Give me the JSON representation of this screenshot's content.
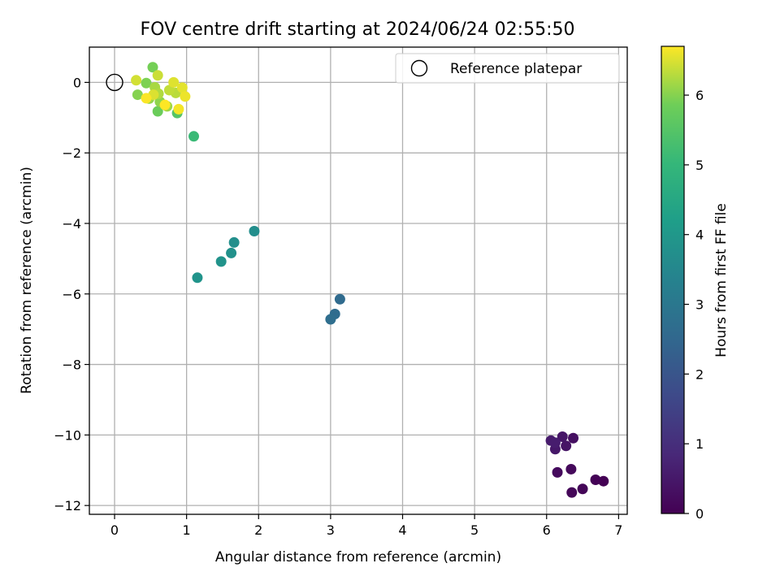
{
  "chart_data": {
    "type": "scatter",
    "title": "FOV centre drift starting at 2024/06/24 02:55:50",
    "xlabel": "Angular distance from reference (arcmin)",
    "ylabel": "Rotation from reference (arcmin)",
    "xlim": [
      -0.35,
      7.12
    ],
    "ylim": [
      -12.25,
      1.0
    ],
    "xticks": [
      0,
      1,
      2,
      3,
      4,
      5,
      6,
      7
    ],
    "yticks": [
      0,
      -2,
      -4,
      -6,
      -8,
      -10,
      -12
    ],
    "grid": true,
    "legend": {
      "position": "top-right",
      "entries": [
        {
          "label": "Reference platepar",
          "marker": "open-circle"
        }
      ]
    },
    "reference_point": {
      "x": 0,
      "y": 0
    },
    "colorbar": {
      "label": "Hours from first FF file",
      "colormap": "viridis",
      "range": [
        0,
        6.7
      ],
      "ticks": [
        0,
        1,
        2,
        3,
        4,
        5,
        6
      ]
    },
    "points": [
      {
        "x": 6.79,
        "y": -11.31,
        "c": 0.0
      },
      {
        "x": 6.68,
        "y": -11.27,
        "c": 0.05
      },
      {
        "x": 6.5,
        "y": -11.53,
        "c": 0.1
      },
      {
        "x": 6.35,
        "y": -11.63,
        "c": 0.12
      },
      {
        "x": 6.34,
        "y": -10.97,
        "c": 0.17
      },
      {
        "x": 6.15,
        "y": -11.06,
        "c": 0.2
      },
      {
        "x": 6.37,
        "y": -10.09,
        "c": 0.3
      },
      {
        "x": 6.27,
        "y": -10.31,
        "c": 0.4
      },
      {
        "x": 6.22,
        "y": -10.05,
        "c": 0.45
      },
      {
        "x": 6.12,
        "y": -10.4,
        "c": 0.5
      },
      {
        "x": 6.06,
        "y": -10.16,
        "c": 0.55
      },
      {
        "x": 6.12,
        "y": -10.22,
        "c": 0.6
      },
      {
        "x": 3.13,
        "y": -6.15,
        "c": 2.6
      },
      {
        "x": 3.06,
        "y": -6.57,
        "c": 2.65
      },
      {
        "x": 3.0,
        "y": -6.72,
        "c": 2.7
      },
      {
        "x": 1.94,
        "y": -4.22,
        "c": 3.7
      },
      {
        "x": 1.66,
        "y": -4.54,
        "c": 3.75
      },
      {
        "x": 1.62,
        "y": -4.84,
        "c": 3.8
      },
      {
        "x": 1.48,
        "y": -5.08,
        "c": 3.85
      },
      {
        "x": 1.15,
        "y": -5.54,
        "c": 3.9
      },
      {
        "x": 1.1,
        "y": -1.53,
        "c": 5.1
      },
      {
        "x": 0.87,
        "y": -0.87,
        "c": 5.5
      },
      {
        "x": 0.6,
        "y": -0.82,
        "c": 5.8
      },
      {
        "x": 0.53,
        "y": 0.43,
        "c": 5.9
      },
      {
        "x": 0.44,
        "y": -0.02,
        "c": 5.95
      },
      {
        "x": 0.32,
        "y": -0.35,
        "c": 6.0
      },
      {
        "x": 0.63,
        "y": -0.55,
        "c": 6.05
      },
      {
        "x": 0.48,
        "y": -0.46,
        "c": 6.1
      },
      {
        "x": 0.73,
        "y": -0.68,
        "c": 6.15
      },
      {
        "x": 0.56,
        "y": -0.14,
        "c": 6.2
      },
      {
        "x": 0.61,
        "y": -0.32,
        "c": 6.25
      },
      {
        "x": 0.85,
        "y": -0.3,
        "c": 6.3
      },
      {
        "x": 0.76,
        "y": -0.22,
        "c": 6.35
      },
      {
        "x": 0.6,
        "y": 0.2,
        "c": 6.4
      },
      {
        "x": 0.3,
        "y": 0.06,
        "c": 6.45
      },
      {
        "x": 0.54,
        "y": -0.35,
        "c": 6.5
      },
      {
        "x": 0.82,
        "y": 0.0,
        "c": 6.52
      },
      {
        "x": 0.94,
        "y": -0.15,
        "c": 6.55
      },
      {
        "x": 0.98,
        "y": -0.4,
        "c": 6.6
      },
      {
        "x": 0.89,
        "y": -0.76,
        "c": 6.65
      },
      {
        "x": 0.44,
        "y": -0.45,
        "c": 6.68
      },
      {
        "x": 0.7,
        "y": -0.64,
        "c": 6.7
      }
    ]
  }
}
